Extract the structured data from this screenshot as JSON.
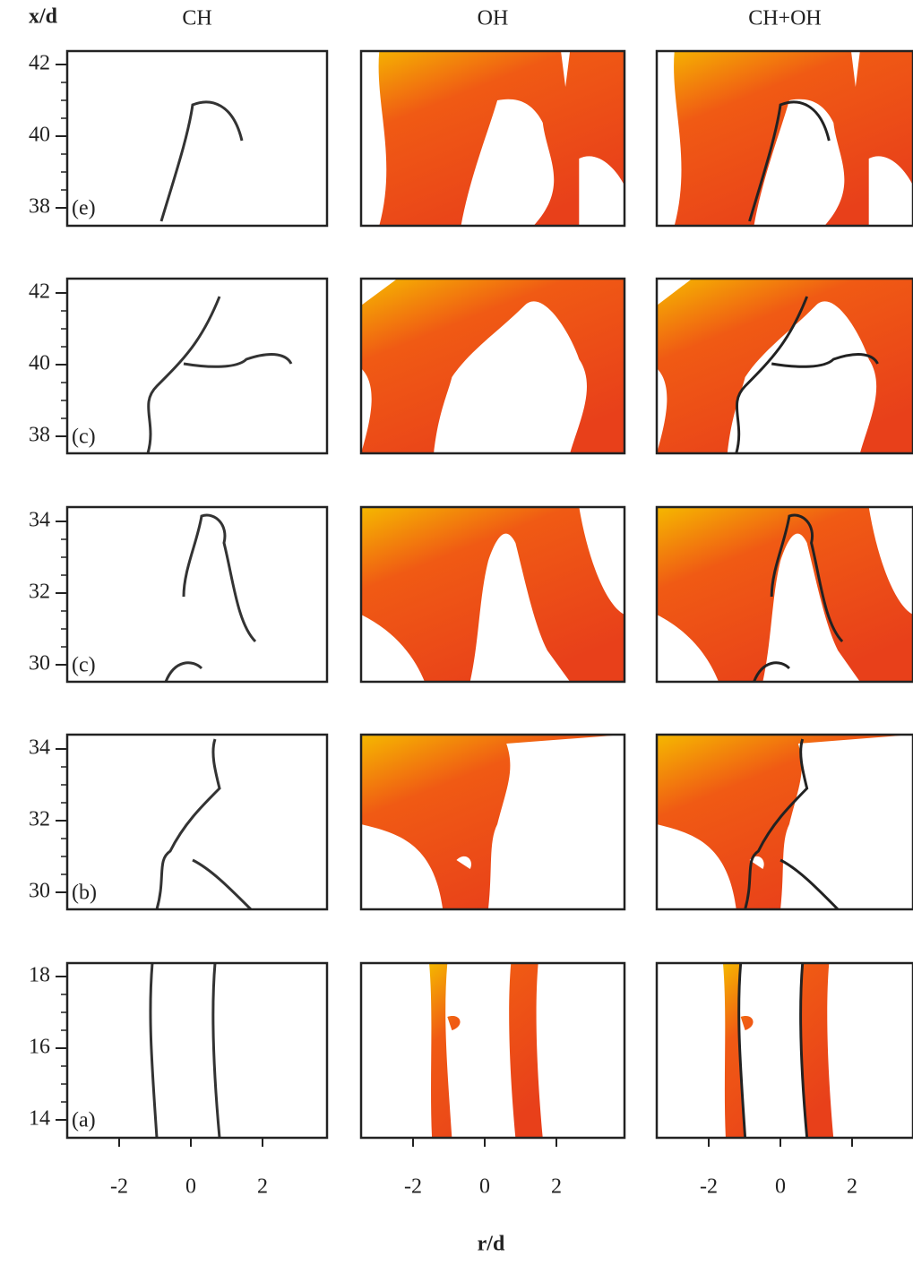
{
  "figure": {
    "y_label": "x/d",
    "x_label": "r/d",
    "columns": [
      "CH",
      "OH",
      "CH+OH"
    ],
    "xticks": [
      -2,
      0,
      2
    ],
    "rows": [
      {
        "label": "(e)",
        "yticks": [
          38,
          40,
          42
        ]
      },
      {
        "label": "(c)",
        "yticks": [
          38,
          40,
          42
        ]
      },
      {
        "label": "(c)",
        "yticks": [
          30,
          32,
          34
        ]
      },
      {
        "label": "(b)",
        "yticks": [
          30,
          32,
          34
        ]
      },
      {
        "label": "(a)",
        "yticks": [
          14,
          16,
          18
        ]
      }
    ]
  }
}
